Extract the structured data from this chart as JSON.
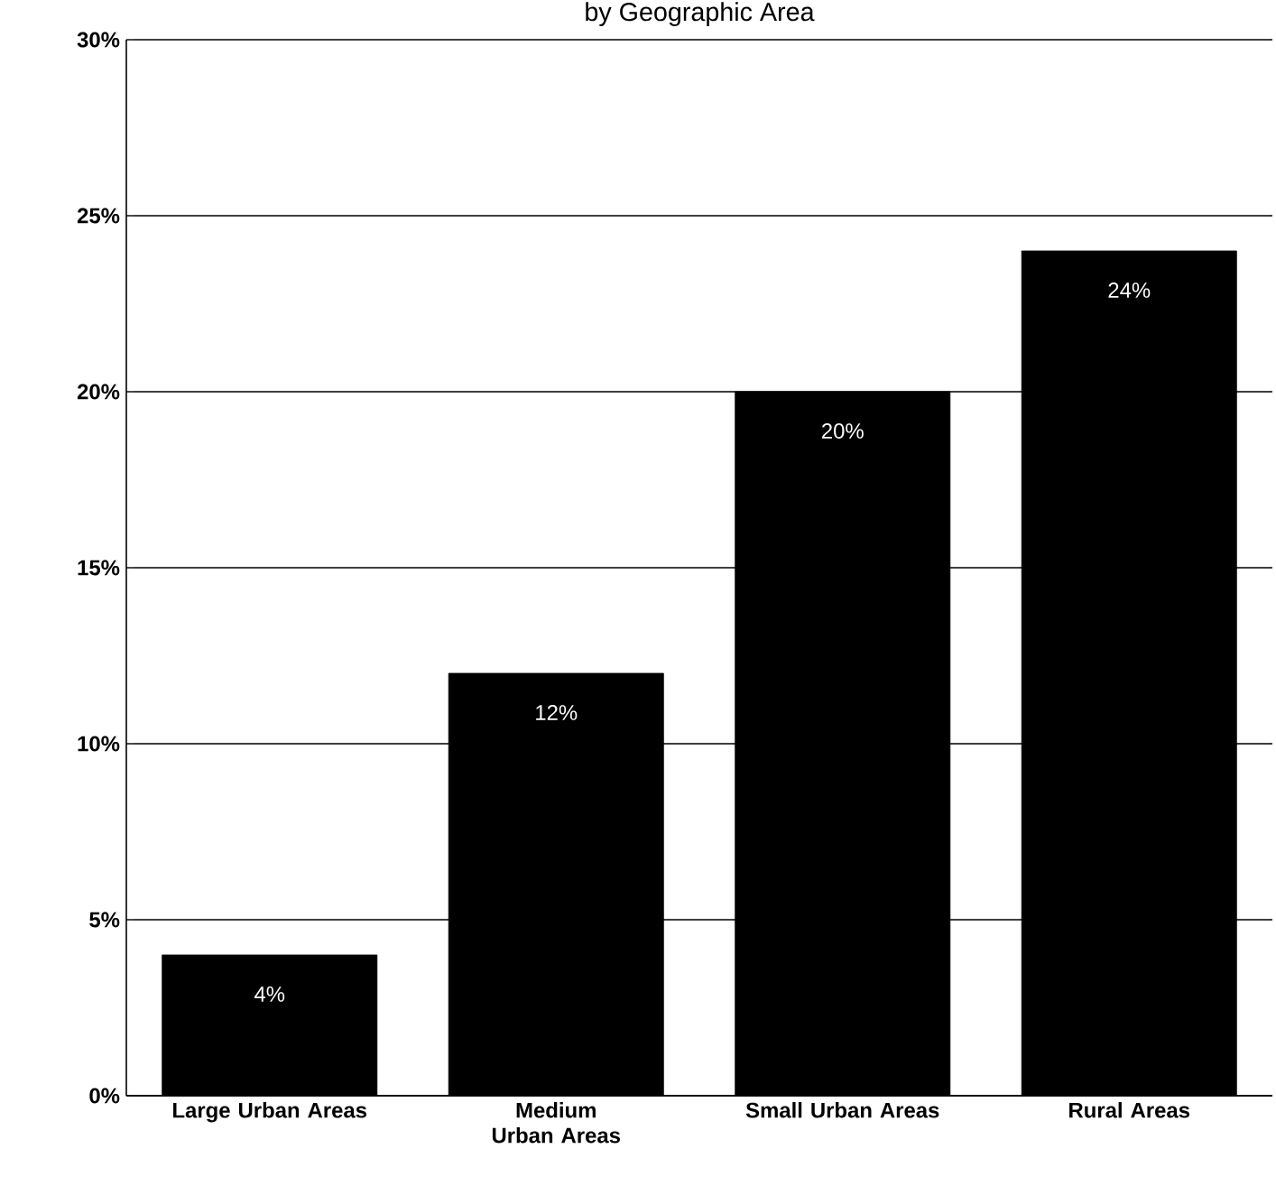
{
  "chart_data": {
    "type": "bar",
    "title": "by Geographic Area",
    "categories": [
      "Large Urban Areas",
      "Medium Urban Areas",
      "Small Urban Areas",
      "Rural Areas"
    ],
    "values": [
      4,
      12,
      20,
      24
    ],
    "color": "#000000",
    "value_labels": [
      "4%",
      "12%",
      "20%",
      "24%"
    ],
    "ylim": [
      0,
      30
    ],
    "yticks": [
      {
        "value": 0,
        "label": "0%"
      },
      {
        "value": 5,
        "label": "5%"
      },
      {
        "value": 10,
        "label": "10%"
      },
      {
        "value": 15,
        "label": "15%"
      },
      {
        "value": 20,
        "label": "20%"
      },
      {
        "value": 25,
        "label": "25%"
      },
      {
        "value": 30,
        "label": "30%"
      }
    ],
    "grid": "y"
  }
}
